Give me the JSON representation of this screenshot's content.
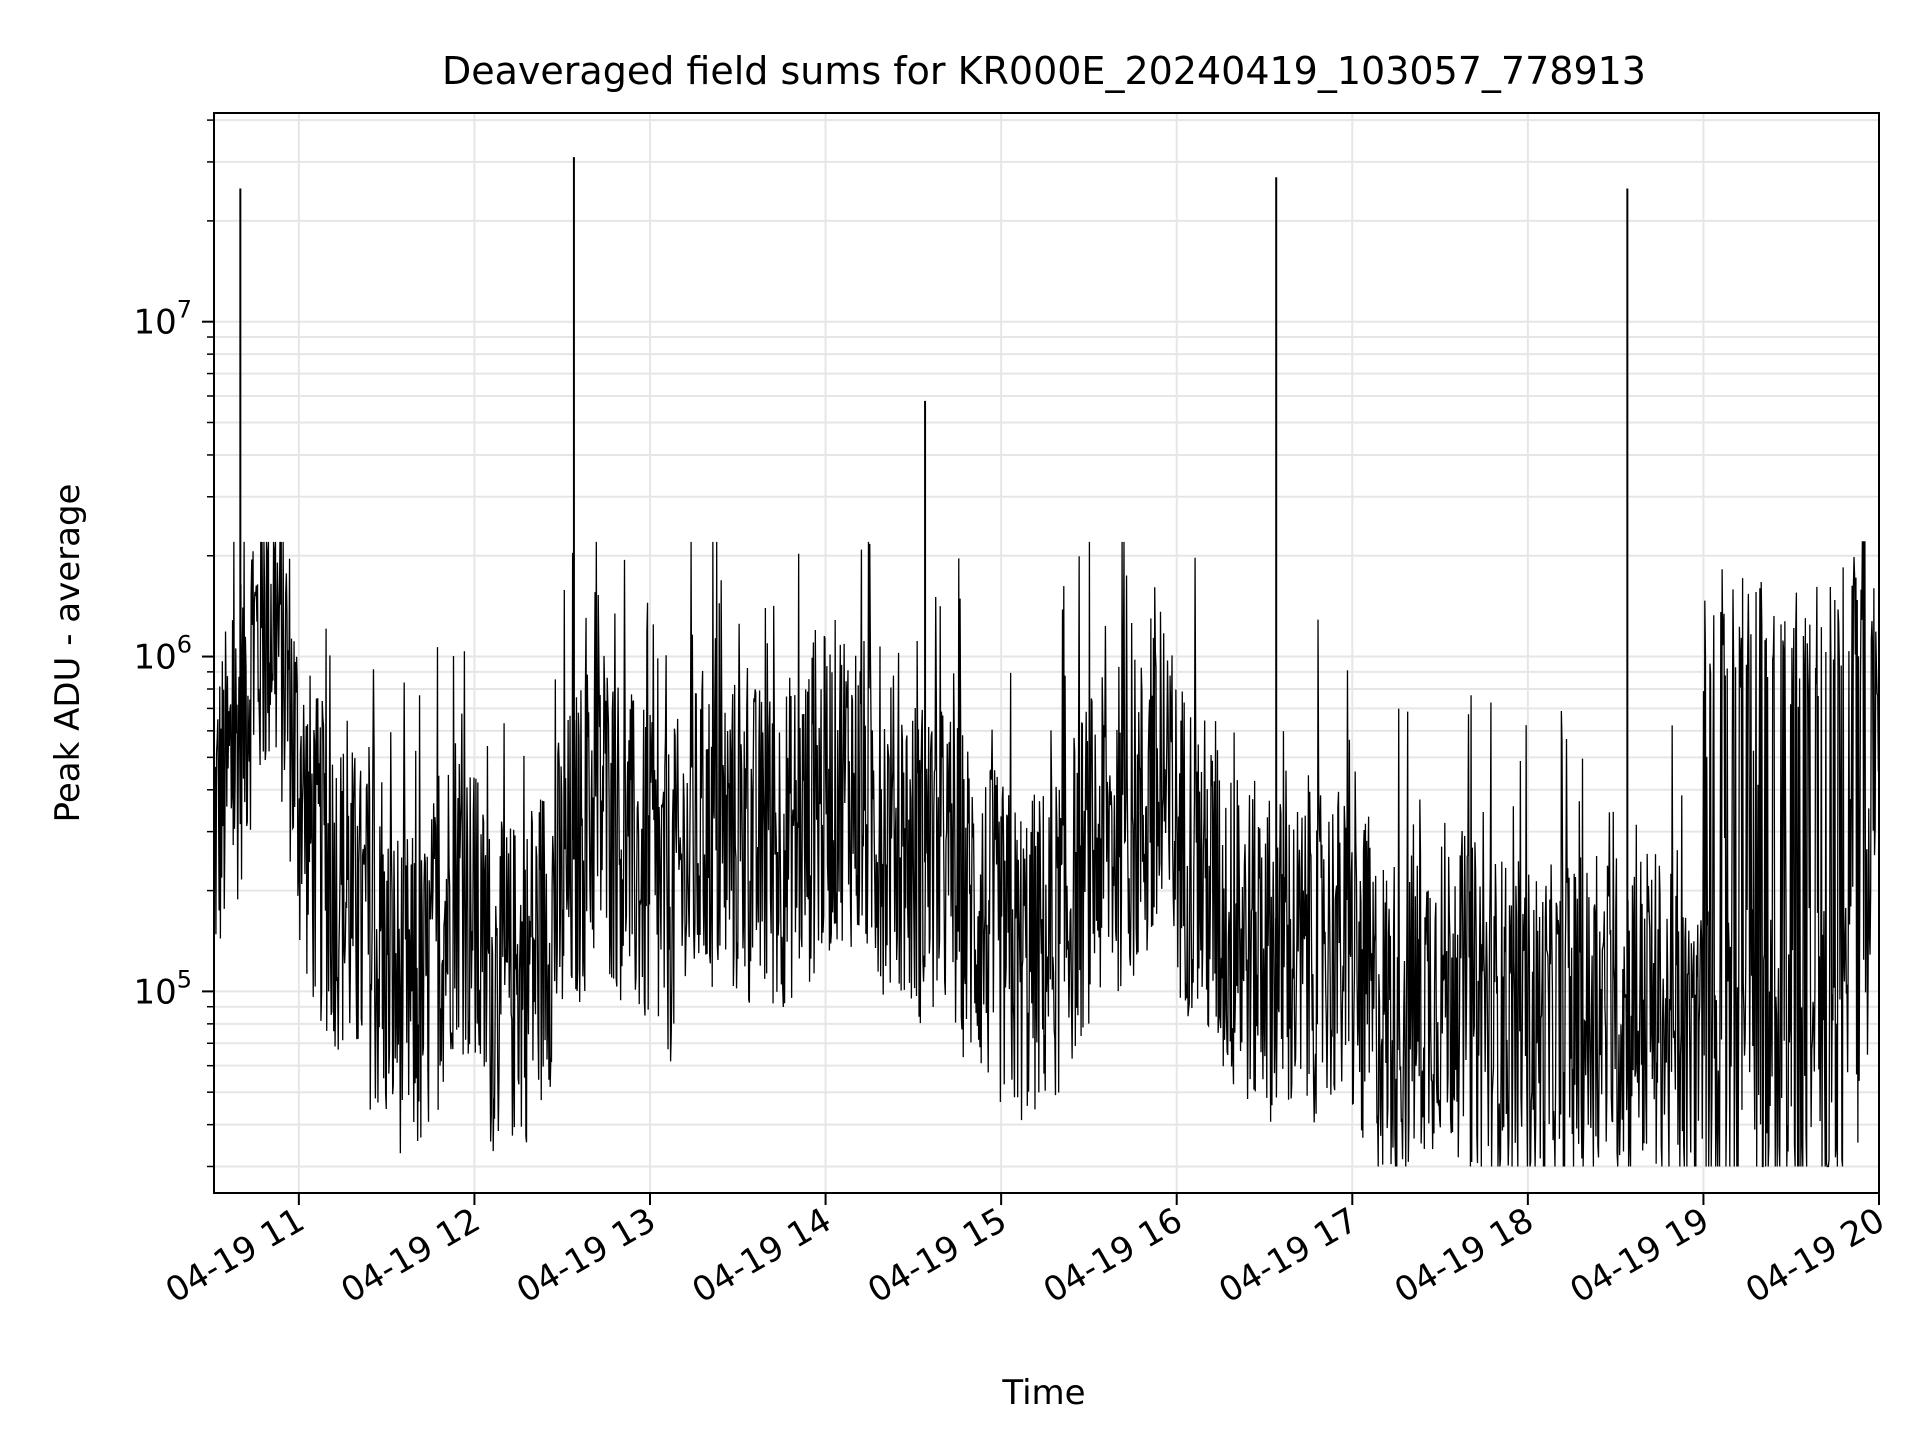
{
  "chart_data": {
    "type": "line",
    "title": "Deaveraged field sums for KR000E_20240419_103057_778913",
    "xlabel": "Time",
    "ylabel": "Peak ADU - average",
    "y_scale": "log",
    "grid": true,
    "legend": "none",
    "line_color": "#000000",
    "grid_color": "#e6e6e6",
    "xlim": [
      "2024-04-19 10:31",
      "2024-04-19 20:00"
    ],
    "ylim": [
      25000,
      42000000
    ],
    "x_ticks": [
      "04-19 11",
      "04-19 12",
      "04-19 13",
      "04-19 14",
      "04-19 15",
      "04-19 16",
      "04-19 17",
      "04-19 18",
      "04-19 19",
      "04-19 20"
    ],
    "y_ticks": [
      {
        "base": "10",
        "exp": "5",
        "value": 100000
      },
      {
        "base": "10",
        "exp": "6",
        "value": 1000000
      },
      {
        "base": "10",
        "exp": "7",
        "value": 10000000
      }
    ],
    "series": [
      {
        "x": [
          "2024-04-19 10:31",
          "2024-04-19 10:38",
          "2024-04-19 10:44",
          "2024-04-19 10:51",
          "2024-04-19 10:56",
          "2024-04-19 11:00",
          "2024-04-19 11:06",
          "2024-04-19 11:18",
          "2024-04-19 11:30",
          "2024-04-19 11:42",
          "2024-04-19 11:54",
          "2024-04-19 12:06",
          "2024-04-19 12:18",
          "2024-04-19 12:30",
          "2024-04-19 12:42",
          "2024-04-19 12:54",
          "2024-04-19 13:06",
          "2024-04-19 13:18",
          "2024-04-19 13:30",
          "2024-04-19 13:42",
          "2024-04-19 13:54",
          "2024-04-19 14:06",
          "2024-04-19 14:18",
          "2024-04-19 14:30",
          "2024-04-19 14:42",
          "2024-04-19 14:54",
          "2024-04-19 15:06",
          "2024-04-19 15:18",
          "2024-04-19 15:30",
          "2024-04-19 15:42",
          "2024-04-19 15:54",
          "2024-04-19 16:06",
          "2024-04-19 16:18",
          "2024-04-19 16:30",
          "2024-04-19 16:42",
          "2024-04-19 16:54",
          "2024-04-19 17:06",
          "2024-04-19 17:18",
          "2024-04-19 17:30",
          "2024-04-19 17:42",
          "2024-04-19 17:54",
          "2024-04-19 18:06",
          "2024-04-19 18:18",
          "2024-04-19 18:30",
          "2024-04-19 18:42",
          "2024-04-19 18:54",
          "2024-04-19 19:06",
          "2024-04-19 19:18",
          "2024-04-19 19:30",
          "2024-04-19 19:42",
          "2024-04-19 19:54",
          "2024-04-19 20:00"
        ],
        "y": [
          300000,
          500000,
          1000000,
          1400000,
          900000,
          400000,
          250000,
          180000,
          110000,
          90000,
          230000,
          100000,
          110000,
          200000,
          380000,
          250000,
          180000,
          300000,
          280000,
          260000,
          320000,
          450000,
          320000,
          250000,
          230000,
          160000,
          120000,
          140000,
          250000,
          320000,
          350000,
          250000,
          150000,
          130000,
          120000,
          140000,
          90000,
          80000,
          110000,
          90000,
          80000,
          75000,
          80000,
          85000,
          90000,
          60000,
          65000,
          60000,
          55000,
          60000,
          80000,
          1200000
        ],
        "spikes": [
          {
            "x": "2024-04-19 10:40",
            "y": 25000000
          },
          {
            "x": "2024-04-19 12:34",
            "y": 31000000
          },
          {
            "x": "2024-04-19 14:34",
            "y": 5800000
          },
          {
            "x": "2024-04-19 16:34",
            "y": 27000000
          },
          {
            "x": "2024-04-19 18:34",
            "y": 25000000
          }
        ]
      }
    ]
  }
}
